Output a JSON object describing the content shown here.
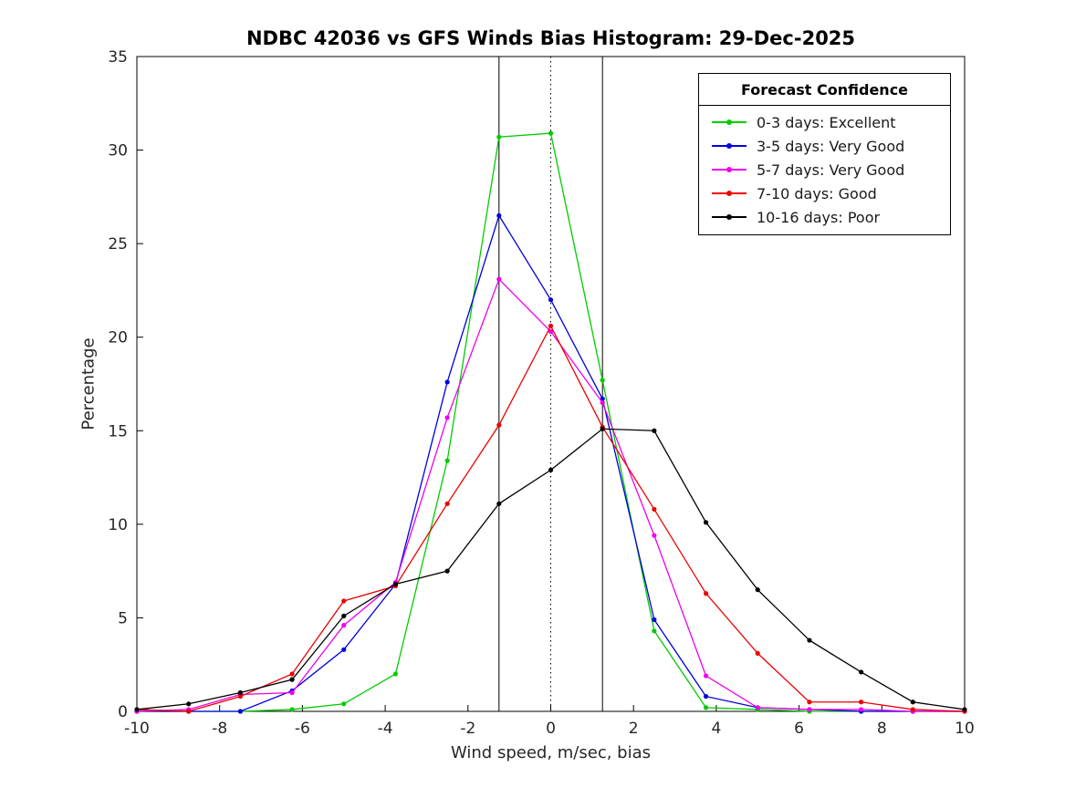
{
  "chart_data": {
    "type": "line",
    "title": "NDBC 42036 vs GFS Winds Bias Histogram: 29-Dec-2025",
    "xlabel": "Wind speed, m/sec, bias",
    "ylabel": "Percentage",
    "xlim": [
      -10,
      10
    ],
    "ylim": [
      0,
      35
    ],
    "xticks": [
      -10,
      -8,
      -6,
      -4,
      -2,
      0,
      2,
      4,
      6,
      8,
      10
    ],
    "yticks": [
      0,
      5,
      10,
      15,
      20,
      25,
      30,
      35
    ],
    "grid": false,
    "legend_position": "top-right",
    "legend_title": "Forecast Confidence",
    "x": [
      -10,
      -8.75,
      -7.5,
      -6.25,
      -5,
      -3.75,
      -2.5,
      -1.25,
      0,
      1.25,
      2.5,
      3.75,
      5,
      6.25,
      7.5,
      8.75,
      10
    ],
    "vlines": {
      "solid": [
        -1.25,
        1.25
      ],
      "dotted": [
        0
      ]
    },
    "series": [
      {
        "name": "0-3 days: Excellent",
        "color": "#00cc00",
        "values": [
          0,
          0,
          0,
          0.1,
          0.4,
          2.0,
          13.4,
          30.7,
          30.9,
          17.7,
          4.3,
          0.2,
          0.1,
          0,
          0,
          0,
          0
        ]
      },
      {
        "name": "3-5 days: Very Good",
        "color": "#0000e0",
        "values": [
          0,
          0,
          0,
          1.1,
          3.3,
          6.8,
          17.6,
          26.5,
          22.0,
          16.7,
          4.9,
          0.8,
          0.2,
          0.1,
          0,
          0,
          0
        ]
      },
      {
        "name": "5-7 days: Very Good",
        "color": "#ee00ee",
        "values": [
          0,
          0.1,
          0.9,
          1.0,
          4.6,
          6.9,
          15.7,
          23.1,
          20.3,
          16.5,
          9.4,
          1.9,
          0.2,
          0.1,
          0.1,
          0,
          0
        ]
      },
      {
        "name": "7-10 days: Good",
        "color": "#ee0000",
        "values": [
          0.1,
          0,
          0.8,
          2.0,
          5.9,
          6.7,
          11.1,
          15.3,
          20.6,
          15.2,
          10.8,
          6.3,
          3.1,
          0.5,
          0.5,
          0.1,
          0
        ]
      },
      {
        "name": "10-16 days: Poor",
        "color": "#000000",
        "values": [
          0.1,
          0.4,
          1.0,
          1.7,
          5.1,
          6.8,
          7.5,
          11.1,
          12.9,
          15.1,
          15.0,
          10.1,
          6.5,
          3.8,
          2.1,
          0.5,
          0.1
        ]
      }
    ]
  }
}
